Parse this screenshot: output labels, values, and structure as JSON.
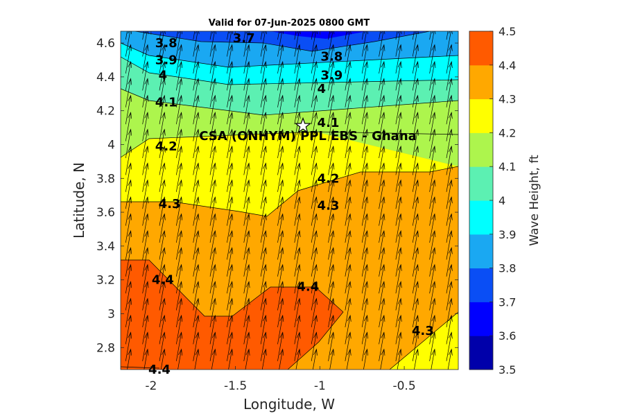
{
  "chart_data": {
    "type": "heatmap",
    "title": "Valid for 07-Jun-2025 0800 GMT",
    "xlabel": "Longitude, W",
    "ylabel": "Latitude, N",
    "xlim": [
      -2.18,
      -0.18
    ],
    "ylim": [
      2.67,
      4.67
    ],
    "xticks": [
      -2,
      -1.5,
      -1,
      -0.5
    ],
    "xtick_labels": [
      "-2",
      "-1.5",
      "-1",
      "-0.5"
    ],
    "yticks": [
      2.8,
      3,
      3.2,
      3.4,
      3.6,
      3.8,
      4,
      4.2,
      4.4,
      4.6
    ],
    "ytick_labels": [
      "2.8",
      "3",
      "3.2",
      "3.4",
      "3.6",
      "3.8",
      "4",
      "4.2",
      "4.4",
      "4.6"
    ],
    "colorbar": {
      "label": "Wave Height, ft",
      "limits": [
        3.5,
        4.5
      ],
      "ticks": [
        3.5,
        3.6,
        3.7,
        3.8,
        3.9,
        4,
        4.1,
        4.2,
        4.3,
        4.4,
        4.5
      ],
      "tick_labels": [
        "3.5",
        "3.6",
        "3.7",
        "3.8",
        "3.9",
        "4",
        "4.1",
        "4.2",
        "4.3",
        "4.4",
        "4.5"
      ],
      "colors": [
        "#0000aa",
        "#0000ff",
        "#0a4ef5",
        "#1aa8f2",
        "#00ffff",
        "#5cf0b2",
        "#adf54d",
        "#ffff00",
        "#ffa800",
        "#ff5a00"
      ]
    },
    "contour_labels": [
      {
        "text": "3.7",
        "lon": -1.45,
        "lat": 4.63
      },
      {
        "text": "3.8",
        "lon": -1.91,
        "lat": 4.6
      },
      {
        "text": "3.8",
        "lon": -0.93,
        "lat": 4.52
      },
      {
        "text": "3.9",
        "lon": -1.91,
        "lat": 4.5
      },
      {
        "text": "3.9",
        "lon": -0.93,
        "lat": 4.41
      },
      {
        "text": "4",
        "lon": -1.93,
        "lat": 4.41
      },
      {
        "text": "4",
        "lon": -0.99,
        "lat": 4.33
      },
      {
        "text": "4.1",
        "lon": -1.91,
        "lat": 4.25
      },
      {
        "text": "4.1",
        "lon": -0.95,
        "lat": 4.13
      },
      {
        "text": "4.2",
        "lon": -1.91,
        "lat": 3.99
      },
      {
        "text": "4.2",
        "lon": -0.95,
        "lat": 3.8
      },
      {
        "text": "4.3",
        "lon": -1.89,
        "lat": 3.65
      },
      {
        "text": "4.3",
        "lon": -0.95,
        "lat": 3.64
      },
      {
        "text": "4.3",
        "lon": -0.39,
        "lat": 2.9
      },
      {
        "text": "4.4",
        "lon": -1.93,
        "lat": 3.2
      },
      {
        "text": "4.4",
        "lon": -1.07,
        "lat": 3.16
      },
      {
        "text": "4.4",
        "lon": -1.95,
        "lat": 2.67
      }
    ],
    "site": {
      "name": "CSA (ONHYM) PPL EBS  - Ghana",
      "lon": -1.1,
      "lat": 4.11
    },
    "vectors": {
      "direction": "north-northeast (toward ~10° from north)",
      "grid_lon_step": 0.1,
      "grid_lat_step": 0.1
    }
  }
}
